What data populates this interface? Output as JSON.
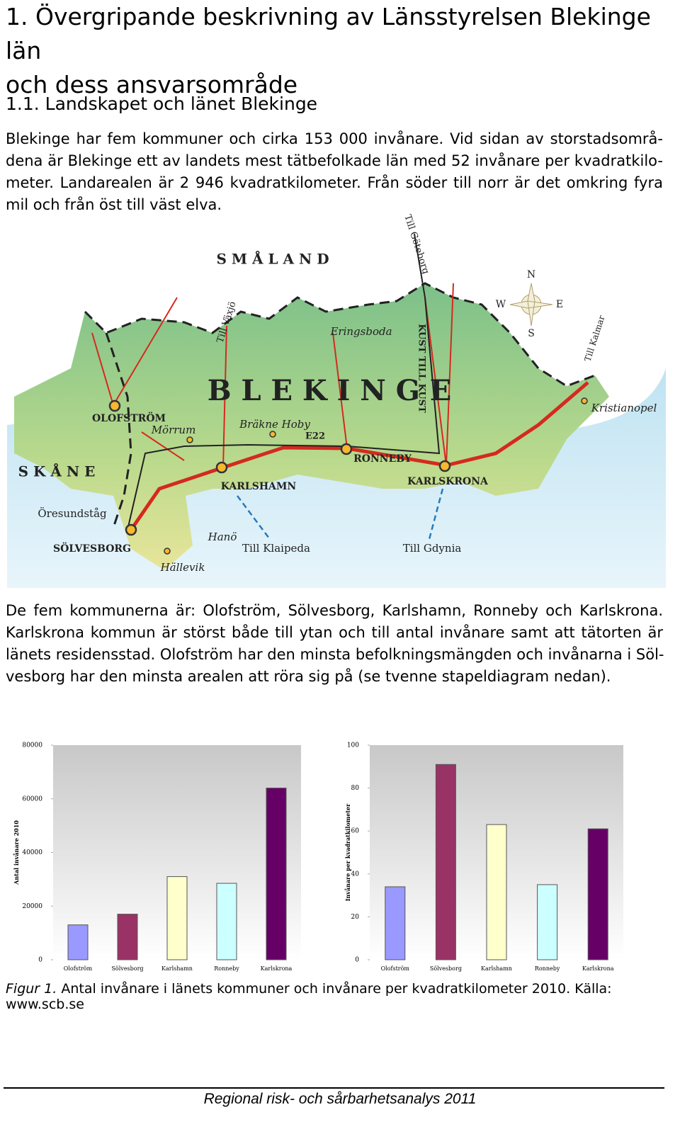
{
  "heading": [
    "1. Övergripande beskrivning av Länsstyrelsen Blekinge län",
    "och dess ansvarsområde"
  ],
  "subheading": "1.1. Landskapet och länet Blekinge",
  "paragraph1": [
    "Blekinge har fem kommuner och cirka 153 000 invånare. Vid sidan av storstadsområ-",
    "dena är Blekinge ett av landets mest tätbefolkade län med 52 invånare per kvadratkilo-",
    "meter. Landarealen är 2 946 kvadratkilometer. Från söder till norr är det omkring fyra",
    "mil och från öst till väst elva."
  ],
  "map": {
    "labels": [
      "S M Å L A N D",
      "Till Göteborg",
      "N",
      "W",
      "E",
      "S",
      "Till Växjö",
      "Eringsboda",
      "KUST TILL KUST",
      "Till Kalmar",
      "B L E K I N G E",
      "OLOFSTRÖM",
      "Mörrum",
      "Bräkne Hoby",
      "E22",
      "Kristianopel",
      "S K Å N E",
      "RONNEBY",
      "KARLSHAMN",
      "KARLSKRONA",
      "Öresundståg",
      "SÖLVESBORG",
      "Hanö",
      "Till Klaipeda",
      "Till Gdynia",
      "Hällevik"
    ]
  },
  "paragraph2": [
    "De fem kommunerna är: Olofström, Sölvesborg, Karlshamn, Ronneby och Karlskrona.",
    "Karlskrona kommun är störst både till ytan och till antal invånare samt att tätorten är",
    "länets residensstad. Olofström har den minsta befolkningsmängden och invånarna i Söl-",
    "vesborg har den minsta arealen att röra sig på (se tvenne stapeldiagram nedan)."
  ],
  "chart_data": [
    {
      "type": "bar",
      "y_label": "Antal invånare 2010",
      "categories": [
        "Olofström",
        "Sölvesborg",
        "Karlshamn",
        "Ronneby",
        "Karlskrona"
      ],
      "values": [
        13000,
        17000,
        31000,
        28500,
        64000
      ],
      "colors": [
        "#9999ff",
        "#993366",
        "#ffffcc",
        "#ccffff",
        "#660066"
      ],
      "ylim": [
        0,
        80000
      ],
      "yticks": [
        0,
        20000,
        40000,
        60000,
        80000
      ]
    },
    {
      "type": "bar",
      "y_label": "Invånare per kvadratkilometer",
      "categories": [
        "Olofström",
        "Sölvesborg",
        "Karlshamn",
        "Ronneby",
        "Karlskrona"
      ],
      "values": [
        34,
        91,
        63,
        35,
        61
      ],
      "colors": [
        "#9999ff",
        "#993366",
        "#ffffcc",
        "#ccffff",
        "#660066"
      ],
      "ylim": [
        0,
        100
      ],
      "yticks": [
        0,
        20,
        40,
        60,
        80,
        100
      ]
    }
  ],
  "caption": {
    "figure": "Figur 1.",
    "text": "Antal invånare i länets kommuner och invånare per kvadratkilometer 2010. Källa: www.scb.se"
  },
  "footer": "Regional risk- och sårbarhetsanalys 2011"
}
